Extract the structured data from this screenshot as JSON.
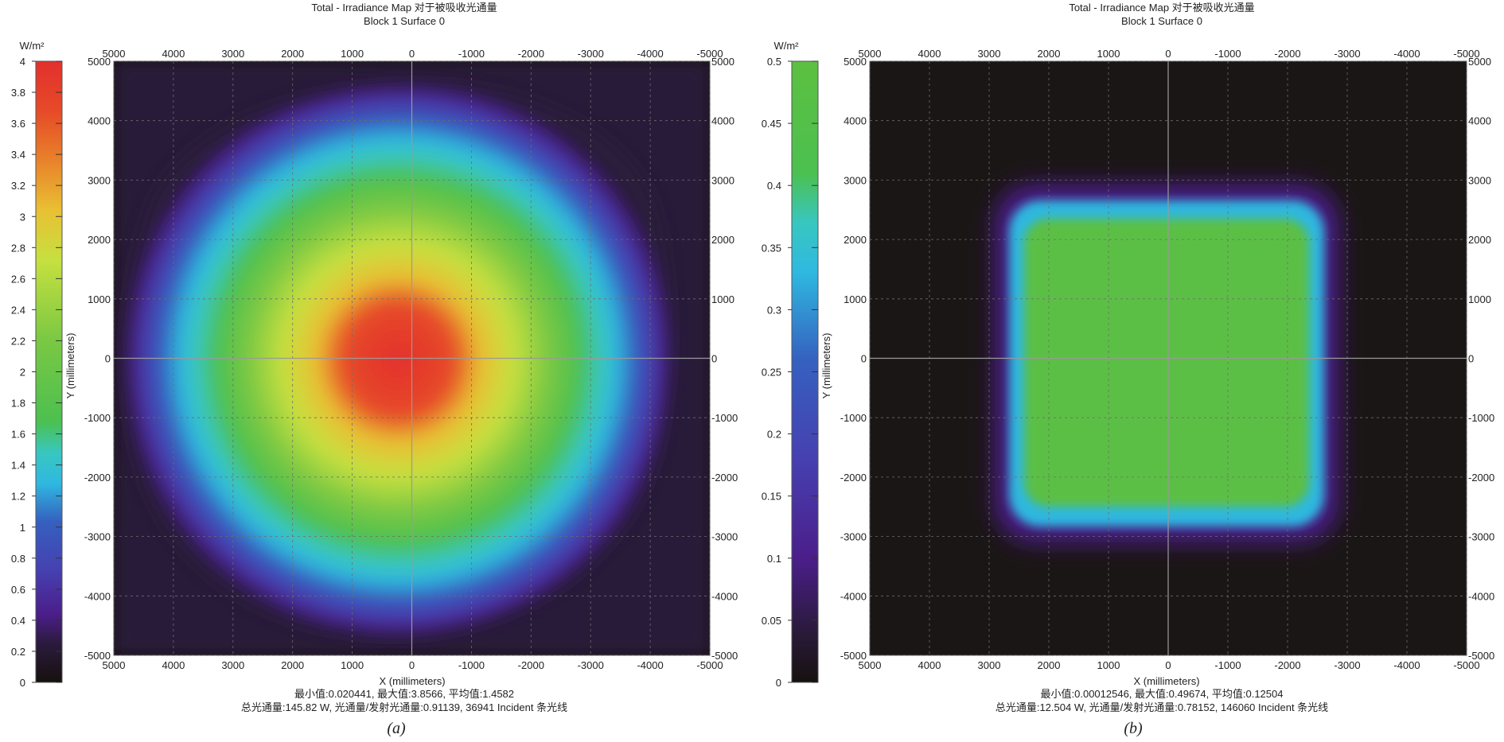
{
  "panels": [
    {
      "id": "a",
      "title_line1": "Total - Irradiance Map 对于被吸收光通量",
      "title_line2": "Block 1 Surface 0",
      "colorbar_unit": "W/m²",
      "colorbar_ticks": [
        "0",
        "0.2",
        "0.4",
        "0.6",
        "0.8",
        "1",
        "1.2",
        "1.4",
        "1.6",
        "1.8",
        "2",
        "2.2",
        "2.4",
        "2.6",
        "2.8",
        "3",
        "3.2",
        "3.4",
        "3.6",
        "3.8",
        "4"
      ],
      "x_ticks": [
        "5000",
        "4000",
        "3000",
        "2000",
        "1000",
        "0",
        "-1000",
        "-2000",
        "-3000",
        "-4000",
        "-5000"
      ],
      "y_ticks_left": [
        "5000",
        "4000",
        "3000",
        "2000",
        "1000",
        "0",
        "-1000",
        "-2000",
        "-3000",
        "-4000",
        "-5000"
      ],
      "y_ticks_right": [
        "5000",
        "4000",
        "3000",
        "2000",
        "1000",
        "0",
        "-1000",
        "-2000",
        "-3000",
        "-4000",
        "-5000"
      ],
      "xlabel": "X (millimeters)",
      "ylabel": "Y (millimeters)",
      "stats_line1": "最小值:0.020441, 最大值:3.8566, 平均值:1.4582",
      "stats_line2": "总光通量:145.82 W, 光通量/发射光通量:0.91139, 36941 Incident 条光线",
      "caption": "(a)"
    },
    {
      "id": "b",
      "title_line1": "Total - Irradiance Map 对于被吸收光通量",
      "title_line2": "Block 1 Surface 0",
      "colorbar_unit": "W/m²",
      "colorbar_ticks": [
        "0",
        "0.05",
        "0.1",
        "0.15",
        "0.2",
        "0.25",
        "0.3",
        "0.35",
        "0.4",
        "0.45",
        "0.5"
      ],
      "x_ticks": [
        "5000",
        "4000",
        "3000",
        "2000",
        "1000",
        "0",
        "-1000",
        "-2000",
        "-3000",
        "-4000",
        "-5000"
      ],
      "y_ticks_left": [
        "5000",
        "4000",
        "3000",
        "2000",
        "1000",
        "0",
        "-1000",
        "-2000",
        "-3000",
        "-4000",
        "-5000"
      ],
      "y_ticks_right": [
        "5000",
        "4000",
        "3000",
        "2000",
        "1000",
        "0",
        "-1000",
        "-2000",
        "-3000",
        "-4000",
        "-5000"
      ],
      "xlabel": "X (millimeters)",
      "ylabel": "Y (millimeters)",
      "stats_line1": "最小值:0.00012546, 最大值:0.49674, 平均值:0.12504",
      "stats_line2": "总光通量:12.504 W, 光通量/发射光通量:0.78152, 146060 Incident 条光线",
      "caption": "(b)"
    }
  ],
  "chart_data": [
    {
      "type": "heatmap",
      "title": "Total - Irradiance Map 对于被吸收光通量",
      "subtitle": "Block 1 Surface 0",
      "xlabel": "X (millimeters)",
      "ylabel": "Y (millimeters)",
      "xlim": [
        5000,
        -5000
      ],
      "ylim": [
        -5000,
        5000
      ],
      "colorbar_range": [
        0,
        4
      ],
      "colorbar_unit": "W/m²",
      "grid": true,
      "min": 0.020441,
      "max": 3.8566,
      "mean": 1.4582,
      "total_flux_W": 145.82,
      "flux_ratio": 0.91139,
      "incident_rays": 36941,
      "distribution": "roughly circular spot centered near (0, 0) with peak ~3.8 W/m² falling to ~1 W/m² near radius 3800 mm"
    },
    {
      "type": "heatmap",
      "title": "Total - Irradiance Map 对于被吸收光通量",
      "subtitle": "Block 1 Surface 0",
      "xlabel": "X (millimeters)",
      "ylabel": "Y (millimeters)",
      "xlim": [
        5000,
        -5000
      ],
      "ylim": [
        -5000,
        5000
      ],
      "colorbar_range": [
        0,
        0.5
      ],
      "colorbar_unit": "W/m²",
      "grid": true,
      "min": 0.00012546,
      "max": 0.49674,
      "mean": 0.12504,
      "total_flux_W": 12.504,
      "flux_ratio": 0.78152,
      "incident_rays": 146060,
      "distribution": "uniform square spot ~0.38 W/m² spanning about x from 2500 to -2500 mm and y from 2500 to -2500 mm, sharp falloff outside"
    }
  ],
  "colormap": [
    "#16110f",
    "#2a1a3a",
    "#4b1e8a",
    "#4640b0",
    "#3561c0",
    "#2d86cc",
    "#2fb8e0",
    "#38c7c0",
    "#4cc050",
    "#7ac843",
    "#c6e040",
    "#e7e246",
    "#e9c033",
    "#e8822a",
    "#e64a28",
    "#e3302e"
  ]
}
